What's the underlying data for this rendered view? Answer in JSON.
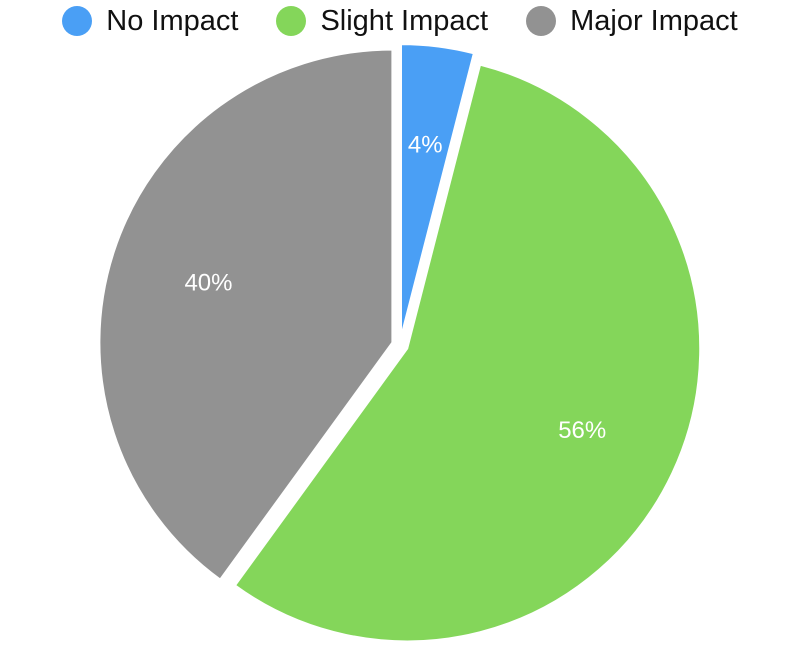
{
  "chart_data": {
    "type": "pie",
    "categories": [
      "No Impact",
      "Slight Impact",
      "Major Impact"
    ],
    "values": [
      4,
      56,
      40
    ],
    "data_labels": [
      "4%",
      "56%",
      "40%"
    ],
    "colors": [
      "#4a9ff5",
      "#84d65a",
      "#929292"
    ],
    "legend_position": "top",
    "start_angle_deg": 0,
    "direction": "clockwise",
    "exploded": true
  }
}
